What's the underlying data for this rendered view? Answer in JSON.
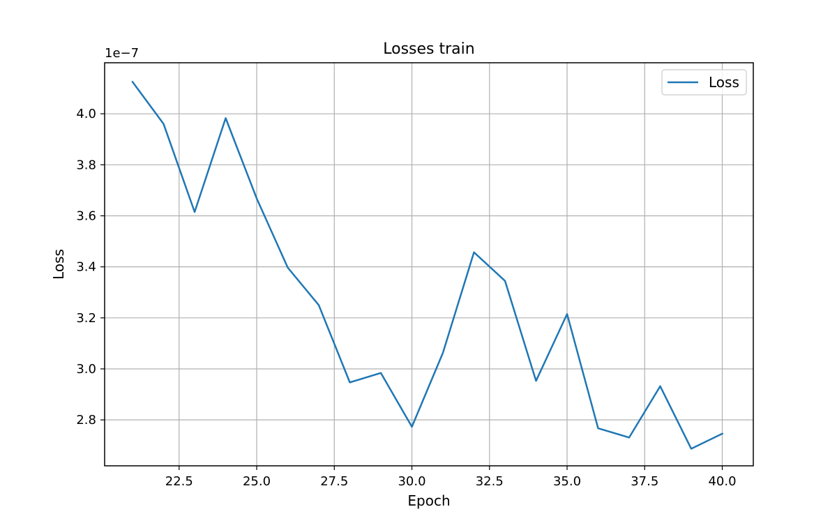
{
  "chart_data": {
    "type": "line",
    "title": "Losses train",
    "xlabel": "Epoch",
    "ylabel": "Loss",
    "y_offset_label": "1e−7",
    "y_scale_exponent": -7,
    "xlim": [
      20.1,
      41.0
    ],
    "ylim": [
      2.62,
      4.2
    ],
    "x_ticks": [
      22.5,
      25.0,
      27.5,
      30.0,
      32.5,
      35.0,
      37.5,
      40.0
    ],
    "x_tick_labels": [
      "22.5",
      "25.0",
      "27.5",
      "30.0",
      "32.5",
      "35.0",
      "37.5",
      "40.0"
    ],
    "y_ticks": [
      2.8,
      3.0,
      3.2,
      3.4,
      3.6,
      3.8,
      4.0
    ],
    "y_tick_labels": [
      "2.8",
      "3.0",
      "3.2",
      "3.4",
      "3.6",
      "3.8",
      "4.0"
    ],
    "grid": true,
    "legend_position": "top-right",
    "series": [
      {
        "name": "Loss",
        "color": "#1f77b4",
        "x": [
          21,
          22,
          23,
          24,
          25,
          26,
          27,
          28,
          29,
          30,
          31,
          32,
          33,
          34,
          35,
          36,
          37,
          38,
          39,
          40
        ],
        "y": [
          4.125,
          3.96,
          3.615,
          3.983,
          3.668,
          3.397,
          3.25,
          2.947,
          2.984,
          2.773,
          3.063,
          3.457,
          3.345,
          2.953,
          3.215,
          2.767,
          2.731,
          2.932,
          2.687,
          2.746
        ]
      }
    ]
  }
}
